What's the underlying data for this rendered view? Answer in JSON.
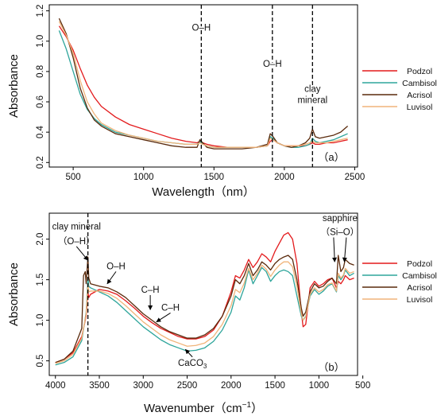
{
  "chart_data": [
    {
      "type": "line",
      "panel_label": "（a）",
      "xlabel": "Wavelength（nm）",
      "ylabel": "Absorbance",
      "xlim": [
        330,
        2520
      ],
      "ylim": [
        0.17,
        1.24
      ],
      "xticks": [
        500,
        1000,
        1500,
        2000,
        2500
      ],
      "yticks": [
        0.2,
        0.4,
        0.6,
        0.8,
        1.0,
        1.2
      ],
      "ytick_labels": [
        "0.2",
        "0.4",
        "0.6",
        "0.8",
        "1.0",
        "1.2"
      ],
      "legend_position": "right",
      "vlines": [
        {
          "x": 1410,
          "label": "O–H",
          "label_y": 1.07
        },
        {
          "x": 1915,
          "label": "O–H",
          "label_y": 0.83
        },
        {
          "x": 2200,
          "label": "clay",
          "label2": "mineral",
          "label_y": 0.665
        }
      ],
      "series": [
        {
          "name": "Podzol",
          "color": "#e31a1c",
          "x": [
            400,
            450,
            500,
            550,
            600,
            650,
            700,
            800,
            900,
            1000,
            1100,
            1200,
            1300,
            1380,
            1400,
            1420,
            1450,
            1500,
            1600,
            1700,
            1800,
            1880,
            1900,
            1920,
            1950,
            2000,
            2050,
            2100,
            2150,
            2180,
            2200,
            2220,
            2250,
            2300,
            2350,
            2400,
            2450
          ],
          "y": [
            1.1,
            1.03,
            0.94,
            0.82,
            0.71,
            0.63,
            0.57,
            0.5,
            0.45,
            0.42,
            0.39,
            0.36,
            0.34,
            0.33,
            0.34,
            0.33,
            0.32,
            0.31,
            0.3,
            0.3,
            0.3,
            0.31,
            0.34,
            0.35,
            0.33,
            0.31,
            0.31,
            0.31,
            0.31,
            0.32,
            0.33,
            0.32,
            0.32,
            0.33,
            0.33,
            0.34,
            0.35
          ]
        },
        {
          "name": "Cambisol",
          "color": "#2ea59b",
          "x": [
            400,
            450,
            500,
            550,
            600,
            650,
            700,
            800,
            900,
            1000,
            1100,
            1200,
            1300,
            1380,
            1400,
            1420,
            1450,
            1500,
            1600,
            1700,
            1800,
            1880,
            1900,
            1920,
            1950,
            2000,
            2050,
            2100,
            2150,
            2180,
            2200,
            2220,
            2250,
            2300,
            2350,
            2400,
            2450
          ],
          "y": [
            1.07,
            0.95,
            0.8,
            0.65,
            0.55,
            0.49,
            0.45,
            0.4,
            0.38,
            0.36,
            0.34,
            0.33,
            0.32,
            0.32,
            0.34,
            0.32,
            0.31,
            0.3,
            0.3,
            0.3,
            0.3,
            0.31,
            0.37,
            0.36,
            0.33,
            0.31,
            0.3,
            0.3,
            0.31,
            0.32,
            0.36,
            0.34,
            0.33,
            0.34,
            0.35,
            0.37,
            0.39
          ]
        },
        {
          "name": "Acrisol",
          "color": "#5a2a0c",
          "x": [
            400,
            450,
            500,
            550,
            600,
            650,
            700,
            800,
            900,
            1000,
            1100,
            1200,
            1300,
            1380,
            1400,
            1420,
            1450,
            1500,
            1600,
            1700,
            1800,
            1880,
            1900,
            1920,
            1950,
            2000,
            2050,
            2100,
            2150,
            2180,
            2200,
            2220,
            2250,
            2300,
            2350,
            2400,
            2450
          ],
          "y": [
            1.15,
            1.05,
            0.89,
            0.69,
            0.56,
            0.48,
            0.44,
            0.39,
            0.37,
            0.35,
            0.33,
            0.31,
            0.3,
            0.3,
            0.35,
            0.33,
            0.3,
            0.29,
            0.29,
            0.29,
            0.3,
            0.32,
            0.39,
            0.37,
            0.33,
            0.31,
            0.3,
            0.31,
            0.33,
            0.36,
            0.42,
            0.37,
            0.36,
            0.37,
            0.38,
            0.4,
            0.44
          ]
        },
        {
          "name": "Luvisol",
          "color": "#f0b47a",
          "x": [
            400,
            450,
            500,
            550,
            600,
            650,
            700,
            800,
            900,
            1000,
            1100,
            1200,
            1300,
            1380,
            1400,
            1420,
            1450,
            1500,
            1600,
            1700,
            1800,
            1880,
            1900,
            1920,
            1950,
            2000,
            2050,
            2100,
            2150,
            2180,
            2200,
            2220,
            2250,
            2300,
            2350,
            2400,
            2450
          ],
          "y": [
            1.13,
            1.04,
            0.92,
            0.74,
            0.6,
            0.52,
            0.46,
            0.41,
            0.38,
            0.36,
            0.34,
            0.33,
            0.32,
            0.32,
            0.33,
            0.32,
            0.31,
            0.3,
            0.3,
            0.3,
            0.3,
            0.31,
            0.36,
            0.35,
            0.33,
            0.31,
            0.31,
            0.31,
            0.32,
            0.33,
            0.34,
            0.33,
            0.33,
            0.33,
            0.34,
            0.35,
            0.36
          ]
        }
      ]
    },
    {
      "type": "line",
      "panel_label": "（b）",
      "xlabel": "Wavenumber（cm",
      "xlabel_sup": "−1",
      "xlabel_close": "）",
      "ylabel": "Absorbance",
      "xlim": [
        4070,
        560
      ],
      "ylim": [
        0.32,
        2.32
      ],
      "xticks": [
        4000,
        3500,
        3000,
        2500,
        2000,
        1500,
        1000,
        500
      ],
      "yticks": [
        0.5,
        1.0,
        1.5,
        2.0
      ],
      "ytick_labels": [
        "0.5",
        "1.0",
        "1.5",
        "2.0"
      ],
      "legend_position": "right",
      "vlines": [
        {
          "x": 3630
        }
      ],
      "annotations": [
        {
          "text": "clay mineral",
          "x": 3760,
          "y": 2.12
        },
        {
          "text": "（O–H）",
          "x": 3760,
          "y": 1.94,
          "arrow_to": [
            3630,
            1.74
          ]
        },
        {
          "text": "O–H",
          "x": 3310,
          "y": 1.63,
          "arrow_to": [
            3410,
            1.45
          ]
        },
        {
          "text": "C–H",
          "x": 2920,
          "y": 1.34,
          "arrow_to": [
            2920,
            1.13
          ]
        },
        {
          "text": "C–H",
          "x": 2690,
          "y": 1.12,
          "arrow_to": [
            2850,
            0.98
          ]
        },
        {
          "text": "CaCO",
          "sub": "3",
          "x": 2440,
          "y": 0.44,
          "arrow_to": [
            2520,
            0.64
          ]
        },
        {
          "text": "sapphire",
          "x": 760,
          "y": 2.22
        },
        {
          "text": "（Si–O）",
          "x": 760,
          "y": 2.05,
          "arrow_to": [
            820,
            1.72
          ],
          "arrow2_to": [
            710,
            1.72
          ]
        }
      ],
      "series": [
        {
          "name": "Podzol",
          "color": "#e31a1c",
          "x": [
            4000,
            3900,
            3800,
            3700,
            3650,
            3630,
            3620,
            3600,
            3500,
            3400,
            3300,
            3200,
            3100,
            3000,
            2900,
            2800,
            2700,
            2600,
            2500,
            2400,
            2300,
            2200,
            2100,
            2000,
            1950,
            1900,
            1850,
            1800,
            1750,
            1700,
            1650,
            1600,
            1550,
            1500,
            1450,
            1400,
            1350,
            1300,
            1250,
            1200,
            1180,
            1150,
            1100,
            1050,
            1000,
            950,
            900,
            850,
            800,
            780,
            750,
            720,
            700,
            650,
            600
          ],
          "y": [
            0.48,
            0.52,
            0.6,
            0.8,
            1.05,
            1.35,
            1.28,
            1.32,
            1.38,
            1.36,
            1.32,
            1.24,
            1.15,
            1.05,
            0.97,
            0.9,
            0.85,
            0.8,
            0.77,
            0.77,
            0.8,
            0.88,
            1.05,
            1.35,
            1.55,
            1.52,
            1.62,
            1.75,
            1.65,
            1.72,
            1.82,
            1.78,
            1.72,
            1.85,
            1.95,
            2.05,
            2.08,
            2.0,
            1.7,
            1.1,
            0.92,
            0.95,
            1.4,
            1.48,
            1.42,
            1.45,
            1.5,
            1.52,
            1.4,
            1.48,
            1.45,
            1.5,
            1.55,
            1.5,
            1.52
          ]
        },
        {
          "name": "Cambisol",
          "color": "#2ea59b",
          "x": [
            4000,
            3900,
            3800,
            3700,
            3650,
            3630,
            3620,
            3600,
            3500,
            3400,
            3300,
            3200,
            3100,
            3000,
            2900,
            2800,
            2700,
            2600,
            2500,
            2400,
            2300,
            2200,
            2100,
            2000,
            1950,
            1900,
            1850,
            1800,
            1750,
            1700,
            1650,
            1600,
            1550,
            1500,
            1450,
            1400,
            1350,
            1300,
            1250,
            1200,
            1180,
            1150,
            1100,
            1050,
            1000,
            950,
            900,
            850,
            800,
            780,
            750,
            720,
            700,
            650,
            600
          ],
          "y": [
            0.45,
            0.48,
            0.55,
            0.75,
            1.1,
            1.52,
            1.42,
            1.4,
            1.35,
            1.3,
            1.22,
            1.12,
            1.02,
            0.92,
            0.84,
            0.76,
            0.7,
            0.66,
            0.62,
            0.63,
            0.66,
            0.74,
            0.88,
            1.1,
            1.3,
            1.25,
            1.4,
            1.62,
            1.45,
            1.55,
            1.65,
            1.6,
            1.48,
            1.55,
            1.6,
            1.62,
            1.6,
            1.55,
            1.3,
            1.05,
            1.0,
            1.05,
            1.3,
            1.38,
            1.32,
            1.36,
            1.42,
            1.45,
            1.35,
            1.55,
            1.5,
            1.55,
            1.62,
            1.55,
            1.58
          ]
        },
        {
          "name": "Acrisol",
          "color": "#5a2a0c",
          "x": [
            4000,
            3900,
            3800,
            3700,
            3680,
            3660,
            3650,
            3630,
            3620,
            3600,
            3500,
            3400,
            3300,
            3200,
            3100,
            3000,
            2900,
            2800,
            2700,
            2600,
            2500,
            2400,
            2300,
            2200,
            2100,
            2000,
            1950,
            1900,
            1850,
            1800,
            1750,
            1700,
            1650,
            1600,
            1550,
            1500,
            1450,
            1400,
            1350,
            1300,
            1250,
            1200,
            1180,
            1150,
            1100,
            1050,
            1000,
            950,
            900,
            850,
            800,
            780,
            750,
            720,
            700,
            650,
            600
          ],
          "y": [
            0.48,
            0.52,
            0.62,
            0.9,
            1.55,
            1.6,
            1.45,
            1.78,
            1.52,
            1.45,
            1.42,
            1.4,
            1.35,
            1.28,
            1.18,
            1.08,
            1.0,
            0.92,
            0.86,
            0.82,
            0.78,
            0.78,
            0.82,
            0.9,
            1.05,
            1.3,
            1.5,
            1.45,
            1.55,
            1.7,
            1.55,
            1.62,
            1.72,
            1.68,
            1.62,
            1.7,
            1.75,
            1.78,
            1.8,
            1.75,
            1.5,
            1.15,
            1.05,
            1.1,
            1.35,
            1.45,
            1.4,
            1.42,
            1.48,
            1.52,
            1.45,
            1.8,
            1.6,
            1.65,
            1.75,
            1.7,
            1.68
          ]
        },
        {
          "name": "Luvisol",
          "color": "#f0b47a",
          "x": [
            4000,
            3900,
            3800,
            3700,
            3650,
            3630,
            3620,
            3600,
            3500,
            3400,
            3300,
            3200,
            3100,
            3000,
            2900,
            2800,
            2700,
            2600,
            2500,
            2400,
            2300,
            2200,
            2100,
            2000,
            1950,
            1900,
            1850,
            1800,
            1750,
            1700,
            1650,
            1600,
            1550,
            1500,
            1450,
            1400,
            1350,
            1300,
            1250,
            1200,
            1180,
            1150,
            1100,
            1050,
            1000,
            950,
            900,
            850,
            800,
            780,
            750,
            720,
            700,
            650,
            600
          ],
          "y": [
            0.47,
            0.5,
            0.58,
            0.78,
            1.08,
            1.45,
            1.35,
            1.36,
            1.36,
            1.33,
            1.27,
            1.18,
            1.08,
            0.98,
            0.9,
            0.82,
            0.76,
            0.72,
            0.68,
            0.69,
            0.72,
            0.8,
            0.95,
            1.18,
            1.38,
            1.34,
            1.46,
            1.64,
            1.5,
            1.58,
            1.68,
            1.63,
            1.54,
            1.62,
            1.68,
            1.72,
            1.72,
            1.66,
            1.42,
            1.08,
            1.0,
            1.04,
            1.32,
            1.4,
            1.35,
            1.38,
            1.44,
            1.46,
            1.36,
            1.58,
            1.52,
            1.56,
            1.64,
            1.58,
            1.6
          ]
        }
      ]
    }
  ]
}
